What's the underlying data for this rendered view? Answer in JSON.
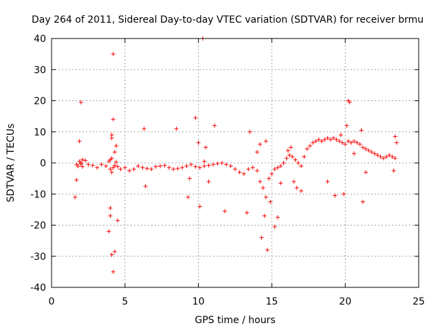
{
  "chart_data": {
    "type": "scatter",
    "title": "Day 264 of 2011, Sidereal Day-to-day VTEC variation (SDTVAR) for receiver brmu",
    "xlabel": "GPS time / hours",
    "ylabel": "SDTVAR / TECUs",
    "xlim": [
      0,
      25
    ],
    "ylim": [
      -40,
      40
    ],
    "xticks": [
      0,
      5,
      10,
      15,
      20,
      25
    ],
    "yticks": [
      -40,
      -30,
      -20,
      -10,
      0,
      10,
      20,
      30,
      40
    ],
    "xtick_labels": [
      "0",
      "5",
      "10",
      "15",
      "20",
      "25"
    ],
    "ytick_labels": [
      "-40",
      "-30",
      "-20",
      "-10",
      "0",
      "10",
      "20",
      "30",
      "40"
    ],
    "grid": true,
    "marker": "+",
    "color": "#ff0000",
    "series": [
      {
        "name": "brmu",
        "x": [
          1.7,
          1.8,
          1.9,
          2.0,
          2.1,
          2.3,
          2.5,
          2.8,
          3.1,
          3.4,
          3.7,
          3.9,
          4.0,
          4.1,
          4.2,
          4.3,
          4.4,
          4.5,
          4.7,
          5.0,
          5.3,
          5.6,
          5.9,
          6.2,
          6.5,
          6.8,
          7.1,
          7.4,
          7.7,
          8.0,
          8.3,
          8.6,
          8.9,
          9.2,
          9.5,
          9.8,
          10.1,
          10.4,
          10.7,
          11.0,
          11.3,
          11.6,
          11.9,
          12.2,
          12.5,
          12.8,
          13.1,
          13.4,
          13.7,
          14.0,
          14.2,
          14.4,
          14.6,
          14.8,
          15.0,
          15.2,
          15.4,
          15.6,
          15.8,
          16.0,
          16.2,
          16.4,
          16.6,
          16.8,
          17.0,
          17.2,
          17.4,
          17.6,
          17.8,
          18.0,
          18.2,
          18.4,
          18.6,
          18.8,
          19.0,
          19.2,
          19.4,
          19.6,
          19.8,
          20.0,
          20.2,
          20.4,
          20.6,
          20.8,
          21.0,
          21.2,
          21.4,
          21.6,
          21.8,
          22.0,
          22.2,
          22.4,
          22.6,
          22.8,
          23.0,
          23.2,
          23.4,
          1.6,
          1.7,
          2.0,
          1.9,
          4.1,
          4.2,
          4.3,
          4.0,
          4.1,
          4.2,
          4.5,
          4.4,
          3.9,
          4.0,
          4.3,
          4.1,
          6.3,
          6.4,
          8.5,
          9.3,
          9.4,
          9.8,
          10.0,
          10.1,
          10.3,
          10.5,
          10.7,
          11.1,
          11.8,
          13.5,
          13.3,
          14.0,
          14.3,
          14.5,
          14.7,
          14.2,
          14.6,
          14.9,
          15.2,
          15.4,
          15.6,
          16.1,
          16.3,
          16.5,
          16.7,
          17.0,
          18.8,
          19.3,
          19.7,
          19.9,
          20.2,
          20.3,
          20.1,
          20.6,
          21.1,
          21.2,
          21.4,
          23.4,
          23.5,
          23.3,
          10.4,
          4.1,
          4.2,
          4.0,
          1.8,
          2.0,
          2.1
        ],
        "y": [
          -0.5,
          -1.0,
          0.5,
          -0.3,
          -1.2,
          0.8,
          -0.5,
          -0.8,
          -1.5,
          -0.5,
          -1.0,
          0.5,
          -2.0,
          1.5,
          -1.5,
          -0.8,
          0.3,
          -1.2,
          -2.0,
          -1.5,
          -2.5,
          -2.0,
          -1.0,
          -1.5,
          -1.8,
          -2.0,
          -1.2,
          -1.0,
          -0.8,
          -1.5,
          -2.0,
          -1.8,
          -1.5,
          -1.0,
          -0.5,
          -1.2,
          -1.5,
          -1.0,
          -0.8,
          -0.5,
          -0.2,
          0.0,
          -0.5,
          -1.0,
          -2.0,
          -3.0,
          -3.5,
          -2.0,
          -1.5,
          -2.5,
          -6.0,
          -8.0,
          -11.0,
          -5.0,
          -3.5,
          -2.0,
          -1.5,
          -1.0,
          0.0,
          1.5,
          2.5,
          2.0,
          1.0,
          0.0,
          -1.0,
          2.0,
          4.5,
          5.5,
          6.5,
          7.0,
          7.5,
          7.0,
          7.5,
          8.0,
          7.5,
          8.0,
          7.5,
          7.0,
          6.5,
          6.0,
          7.0,
          6.5,
          7.0,
          6.5,
          6.0,
          5.0,
          4.5,
          4.0,
          3.5,
          3.0,
          2.5,
          2.0,
          1.5,
          2.0,
          2.5,
          2.0,
          1.5,
          -11.0,
          -5.5,
          19.5,
          7.0,
          -29.5,
          -35.0,
          -28.5,
          -17.0,
          8.0,
          14.0,
          -18.5,
          5.5,
          -22.0,
          -14.5,
          3.5,
          9.0,
          11.0,
          -7.5,
          11.0,
          -11.0,
          -5.0,
          14.5,
          6.5,
          -14.0,
          40.0,
          5.0,
          -6.0,
          12.0,
          -15.5,
          10.0,
          -16.0,
          3.5,
          -24.0,
          -17.0,
          -28.0,
          6.0,
          7.0,
          -12.5,
          -20.5,
          -17.5,
          -6.5,
          4.0,
          5.0,
          -6.0,
          -8.0,
          -9.0,
          -6.0,
          -10.5,
          9.0,
          -10.0,
          20.0,
          19.5,
          12.0,
          3.0,
          10.5,
          -12.5,
          -3.0,
          8.5,
          6.5,
          -2.5,
          0.5,
          -3.0,
          35.0,
          1.0,
          -1.0,
          0.0,
          1.0
        ]
      }
    ]
  }
}
